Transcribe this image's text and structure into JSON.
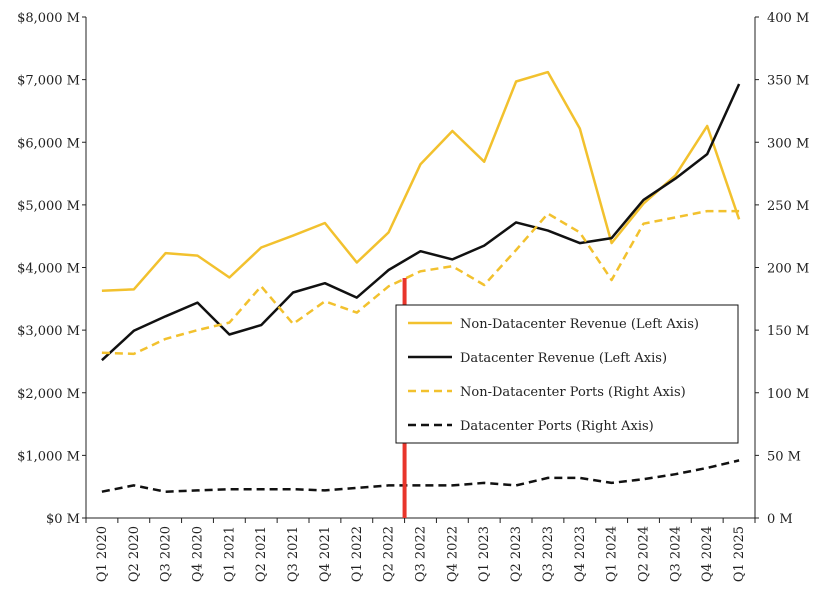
{
  "chart_data": {
    "type": "line",
    "categories": [
      "Q1 2020",
      "Q2 2020",
      "Q3 2020",
      "Q4 2020",
      "Q1 2021",
      "Q2 2021",
      "Q3 2021",
      "Q4 2021",
      "Q1 2022",
      "Q2 2022",
      "Q3 2022",
      "Q4 2022",
      "Q1 2023",
      "Q2 2023",
      "Q3 2023",
      "Q4 2023",
      "Q1 2024",
      "Q2 2024",
      "Q3 2024",
      "Q4 2024",
      "Q1 2025"
    ],
    "left_axis": {
      "ylim": [
        0,
        8000
      ],
      "ticks": [
        0,
        1000,
        2000,
        3000,
        4000,
        5000,
        6000,
        7000,
        8000
      ],
      "tick_labels": [
        "$0 M",
        "$1,000 M",
        "$2,000 M",
        "$3,000 M",
        "$4,000 M",
        "$5,000 M",
        "$6,000 M",
        "$7,000 M",
        "$8,000 M"
      ]
    },
    "right_axis": {
      "ylim": [
        0,
        400
      ],
      "ticks": [
        0,
        50,
        100,
        150,
        200,
        250,
        300,
        350,
        400
      ],
      "tick_labels": [
        "0 M",
        "50 M",
        "100 M",
        "150 M",
        "200 M",
        "250 M",
        "300 M",
        "350 M",
        "400 M"
      ]
    },
    "series": [
      {
        "name": "Non-Datacenter Revenue (Left Axis)",
        "axis": "left",
        "color": "#F2C12E",
        "dash": "solid",
        "values": [
          3630,
          3650,
          4230,
          4190,
          3840,
          4320,
          4510,
          4710,
          4080,
          4560,
          5650,
          6180,
          5690,
          6970,
          7120,
          6220,
          4390,
          5020,
          5470,
          6260,
          4770
        ]
      },
      {
        "name": "Datacenter Revenue (Left Axis)",
        "axis": "left",
        "color": "#111111",
        "dash": "solid",
        "values": [
          2520,
          2990,
          3220,
          3440,
          2930,
          3080,
          3600,
          3750,
          3520,
          3960,
          4260,
          4130,
          4350,
          4720,
          4590,
          4390,
          4470,
          5080,
          5420,
          5810,
          6930
        ]
      },
      {
        "name": "Non-Datacenter Ports (Right Axis)",
        "axis": "right",
        "color": "#F2C12E",
        "dash": "dashed",
        "values": [
          132,
          131,
          143,
          150,
          156,
          185,
          155,
          173,
          164,
          185,
          197,
          201,
          186,
          214,
          243,
          228,
          190,
          235,
          240,
          245,
          245
        ]
      },
      {
        "name": "Datacenter Ports (Right Axis)",
        "axis": "right",
        "color": "#111111",
        "dash": "dashed",
        "values": [
          21,
          26,
          21,
          22,
          23,
          23,
          23,
          22,
          24,
          26,
          26,
          26,
          28,
          26,
          32,
          32,
          28,
          31,
          35,
          40,
          46
        ]
      }
    ],
    "marker_line": {
      "x": "Q3 2022",
      "color": "#E8352B"
    },
    "legend_position": "center-right"
  }
}
